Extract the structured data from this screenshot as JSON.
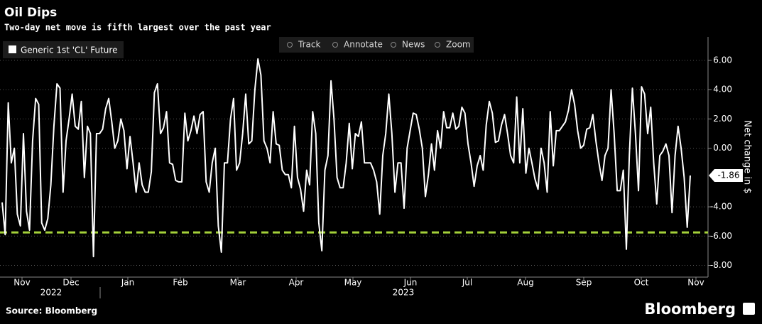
{
  "header": {
    "title": "Oil Dips",
    "subtitle": "Two-day net move is fifth largest over the past year"
  },
  "toolbar": [
    "Track",
    "Annotate",
    "News",
    "Zoom"
  ],
  "footer": {
    "source": "Source: Bloomberg",
    "brand": "Bloomberg"
  },
  "chart_data": {
    "type": "line",
    "y_label": "Net change in $",
    "xtick_labels": [
      "Nov",
      "Dec",
      "Jan",
      "Feb",
      "Mar",
      "Apr",
      "May",
      "Jun",
      "Jul",
      "Aug",
      "Sep",
      "Oct",
      "Nov"
    ],
    "year_labels": [
      "2022",
      "2023"
    ],
    "ylim": [
      -8.8,
      7.6
    ],
    "yticks": [
      {
        "value": 6,
        "label": "6.00"
      },
      {
        "value": 4,
        "label": "4.00"
      },
      {
        "value": 2,
        "label": "2.00"
      },
      {
        "value": 0,
        "label": "0.00"
      },
      {
        "value": -4,
        "label": "-4.00"
      },
      {
        "value": -6,
        "label": "-6.00"
      },
      {
        "value": -8,
        "label": "-8.00"
      }
    ],
    "grid": true,
    "reference_line": {
      "value": -5.75,
      "color": "#a4d13a"
    },
    "series": [
      {
        "name": "Generic 1st 'CL' Future",
        "color": "#ffffff",
        "values": [
          -3.7,
          -5.9,
          3.1,
          -1.0,
          0.0,
          -4.5,
          -5.3,
          1.0,
          -4.3,
          -5.6,
          0.5,
          3.4,
          3.0,
          -5.1,
          -5.6,
          -4.8,
          -2.5,
          1.5,
          4.4,
          4.1,
          -3.0,
          0.5,
          2.0,
          3.7,
          1.5,
          1.3,
          3.2,
          -2.0,
          1.5,
          1.0,
          -7.4,
          1.0,
          1.0,
          1.3,
          2.7,
          3.4,
          1.8,
          0.0,
          0.5,
          2.0,
          1.2,
          -1.4,
          0.8,
          -1.0,
          -3.0,
          -1.0,
          -2.5,
          -3.0,
          -3.0,
          -1.6,
          3.8,
          4.4,
          1.0,
          1.4,
          2.5,
          -1.0,
          -1.1,
          -2.2,
          -2.3,
          -2.3,
          2.4,
          0.5,
          1.2,
          2.2,
          1.0,
          2.3,
          2.5,
          -2.3,
          -3.0,
          -1.0,
          0.0,
          -5.3,
          -7.1,
          -1.0,
          -1.0,
          2.0,
          3.4,
          -1.5,
          -1.0,
          1.0,
          3.7,
          0.3,
          0.5,
          4.0,
          6.1,
          5.0,
          0.5,
          0.0,
          -1.0,
          2.5,
          0.3,
          0.2,
          -1.5,
          -1.8,
          -1.8,
          -2.7,
          1.5,
          -2.0,
          -2.8,
          -4.3,
          -1.5,
          -2.5,
          2.5,
          1.0,
          -5.1,
          -7.0,
          -1.5,
          -0.5,
          4.6,
          2.0,
          -2.0,
          -2.7,
          -2.7,
          -1.0,
          1.7,
          -1.4,
          1.0,
          0.8,
          1.8,
          -1.0,
          -1.0,
          -1.0,
          -1.5,
          -2.3,
          -4.5,
          -0.5,
          1.0,
          3.7,
          1.0,
          -3.0,
          -1.0,
          -1.0,
          -4.1,
          0.0,
          1.2,
          2.4,
          2.3,
          1.3,
          0.0,
          -3.3,
          -1.8,
          0.3,
          -1.5,
          1.2,
          0.0,
          2.5,
          1.4,
          1.4,
          2.4,
          1.3,
          1.5,
          2.8,
          2.4,
          0.3,
          -1.0,
          -2.6,
          -1.2,
          -0.5,
          -1.5,
          1.6,
          3.2,
          2.4,
          0.4,
          0.5,
          1.6,
          2.3,
          1.0,
          -0.5,
          -1.0,
          3.5,
          -1.0,
          2.7,
          -1.7,
          0.0,
          -1.0,
          -2.1,
          -2.8,
          0.0,
          -1.0,
          -3.0,
          2.5,
          -1.2,
          1.2,
          1.2,
          1.5,
          1.8,
          2.6,
          4.0,
          3.0,
          1.2,
          0.0,
          0.2,
          1.3,
          1.4,
          2.3,
          0.5,
          -1.0,
          -2.2,
          -0.5,
          0.0,
          4.0,
          1.0,
          -2.9,
          -2.9,
          -1.5,
          -6.9,
          -0.5,
          4.1,
          1.0,
          -2.9,
          4.2,
          3.7,
          1.0,
          2.8,
          -1.0,
          -3.8,
          -0.5,
          -0.2,
          0.3,
          -0.5,
          -4.4,
          -0.5,
          1.5,
          0.0,
          -2.0,
          -5.4,
          -1.86
        ]
      }
    ]
  }
}
